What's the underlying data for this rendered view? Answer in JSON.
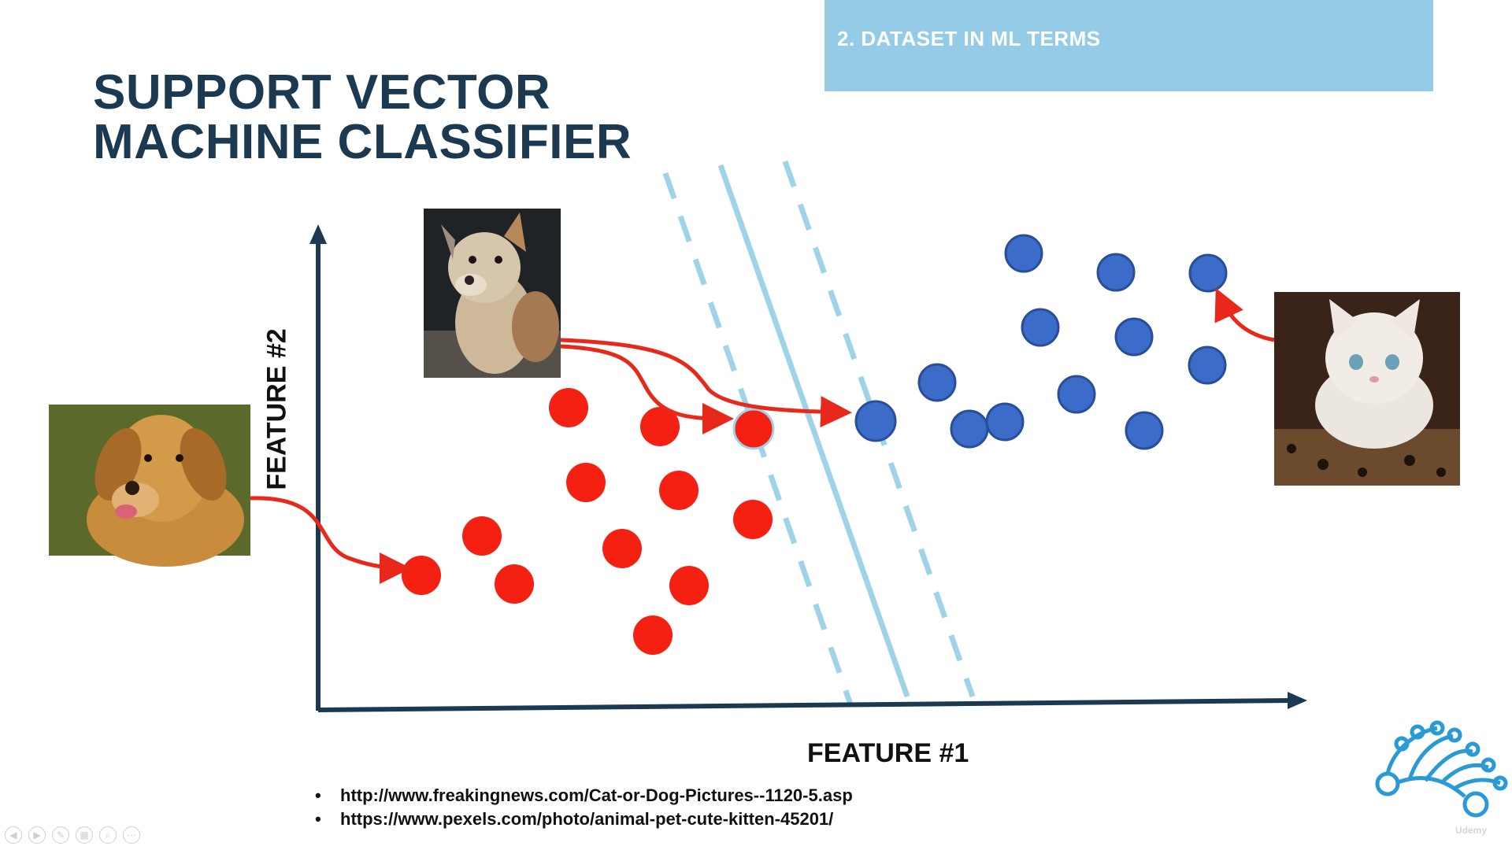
{
  "banner": {
    "text": "2. DATASET IN ML TERMS"
  },
  "title": {
    "line1": "SUPPORT VECTOR",
    "line2": "MACHINE CLASSIFIER"
  },
  "axes": {
    "x_label": "FEATURE #1",
    "y_label": "FEATURE #2"
  },
  "references": [
    "http://www.freakingnews.com/Cat-or-Dog-Pictures--1120-5.asp",
    "https://www.pexels.com/photo/animal-pet-cute-kitten-45201/"
  ],
  "colors": {
    "title": "#1b3a52",
    "banner": "#94cbe6",
    "axis": "#1b3a52",
    "class_dog": "#f42012",
    "class_cat": "#3b6cc9",
    "hyperplane": "#9fd3e8",
    "arrow": "#e8281a",
    "logo": "#2a9ad6"
  },
  "photos": {
    "dog": "golden-retriever-photo",
    "cat_dog_hybrid": "cat-dog-hybrid-photo",
    "kitten": "white-kitten-photo"
  },
  "logo": {
    "icon": "neural-tree-logo-icon"
  },
  "controls": [
    "prev-icon",
    "next-icon",
    "pen-icon",
    "slides-icon",
    "zoom-icon",
    "more-icon"
  ],
  "watermark": "Udemy"
}
